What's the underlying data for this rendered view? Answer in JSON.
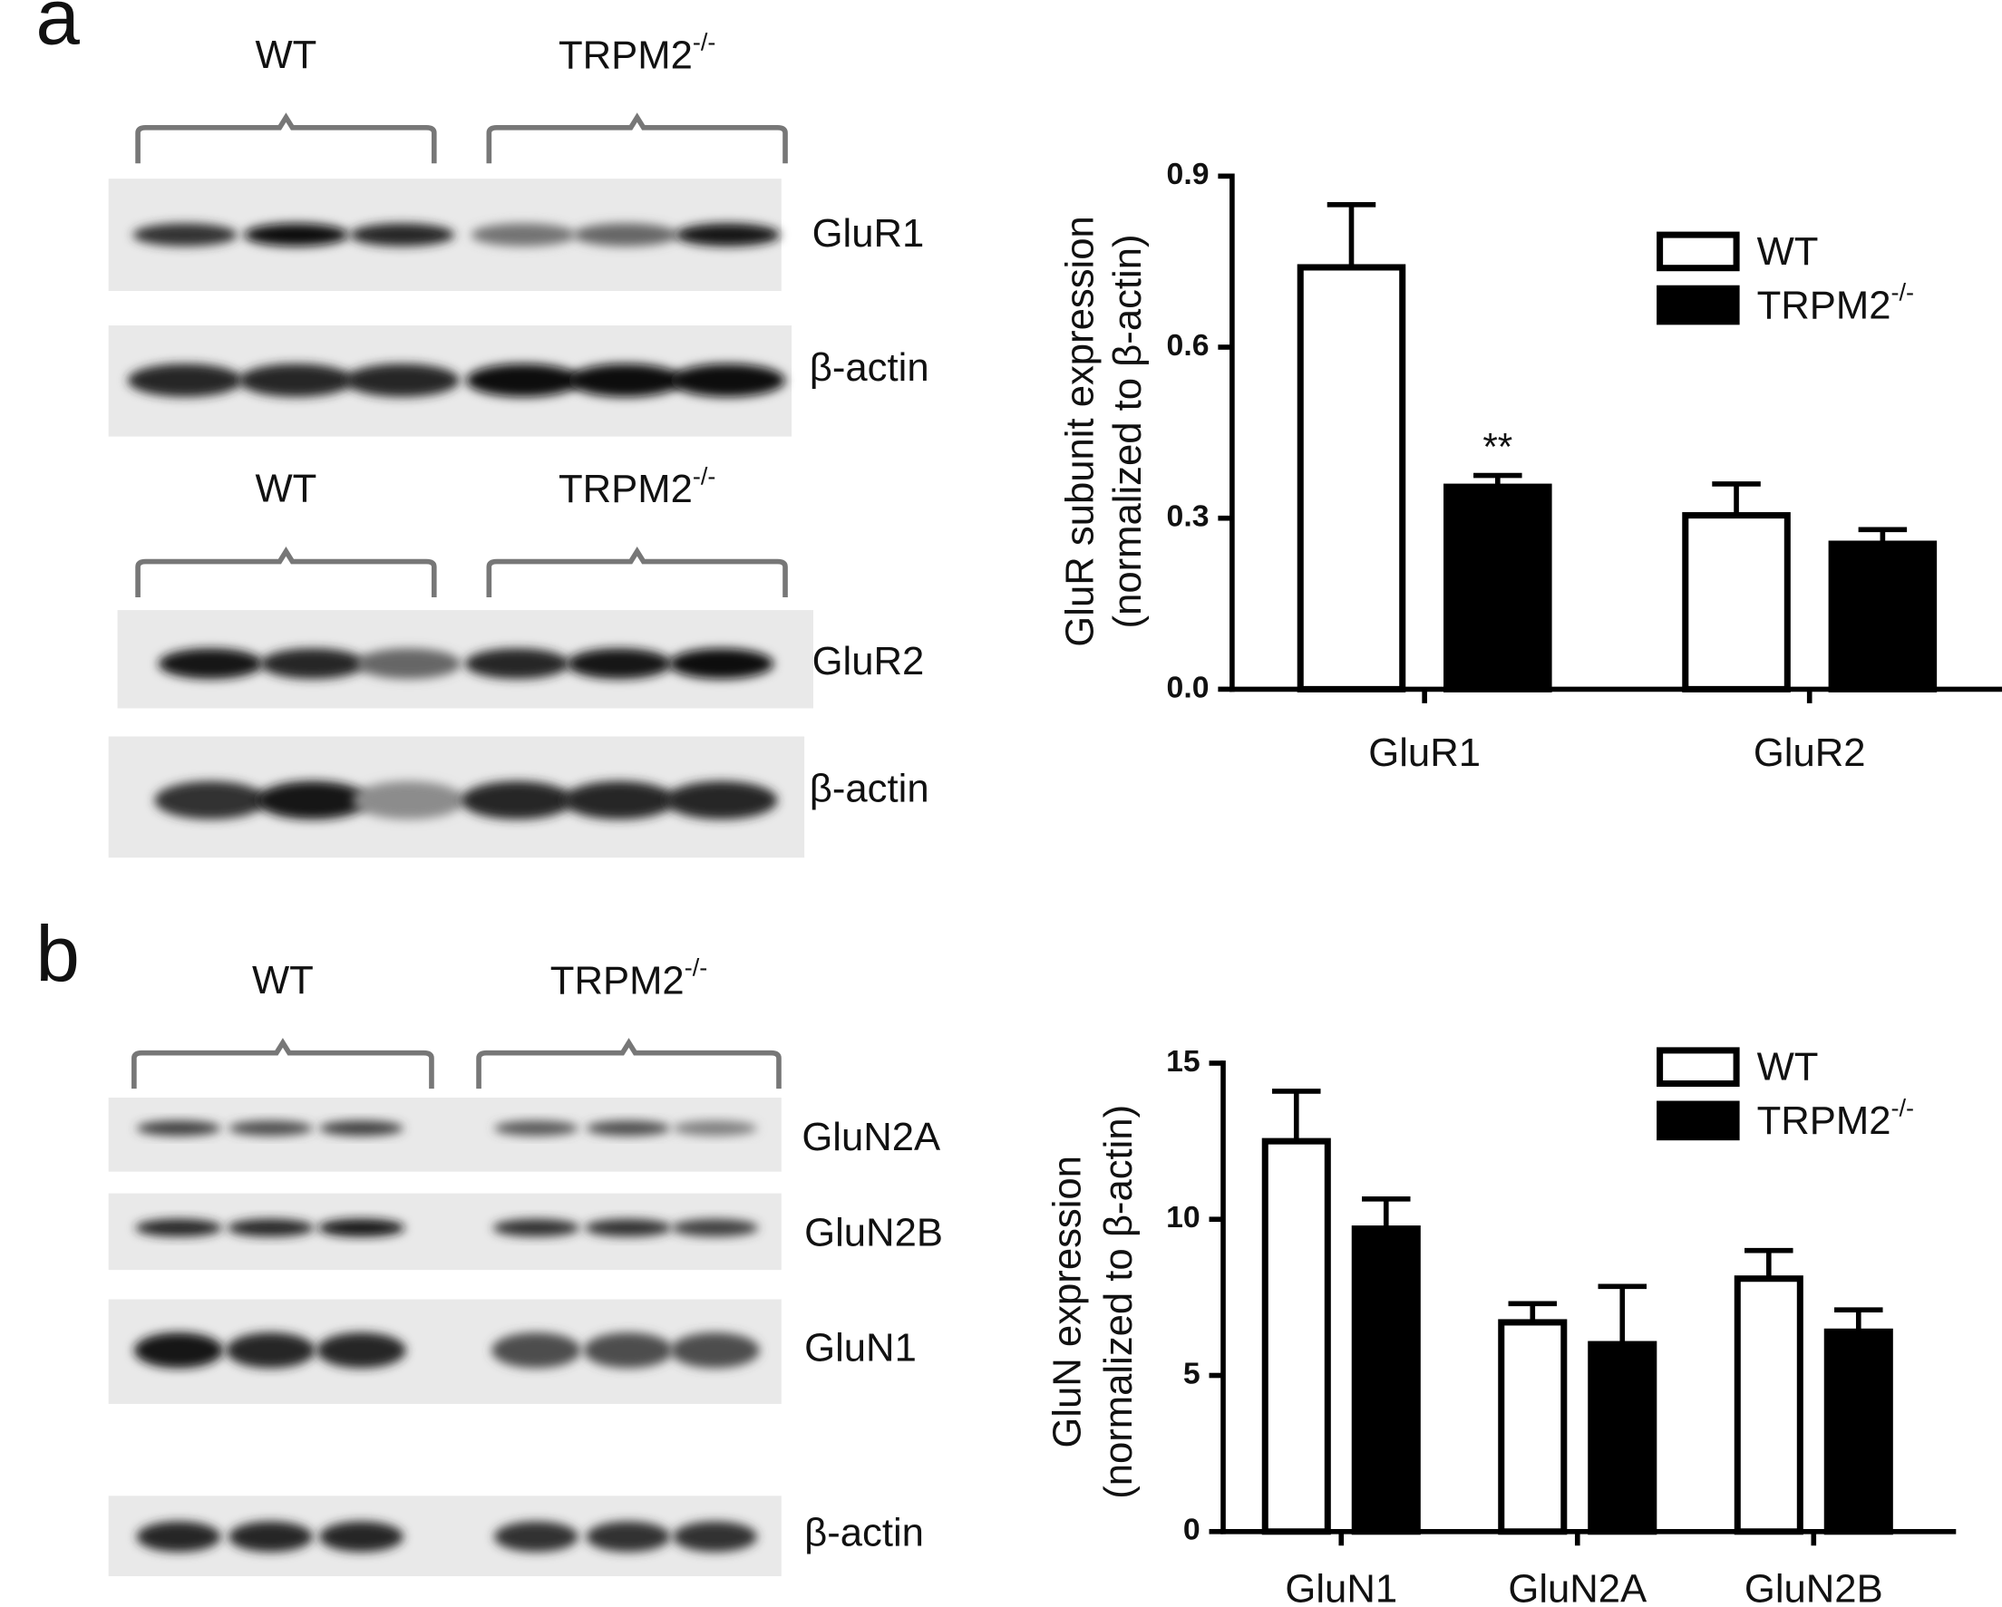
{
  "panel_labels": [
    "a",
    "b"
  ],
  "blots": [
    {
      "groups": [
        "WT",
        "TRPM2-/-"
      ],
      "rows": [
        "GluR1",
        "β-actin"
      ]
    },
    {
      "groups": [
        "WT",
        "TRPM2-/-"
      ],
      "rows": [
        "GluR2",
        "β-actin"
      ]
    },
    {
      "groups": [
        "WT",
        "TRPM2-/-"
      ],
      "rows": [
        "GluN2A",
        "GluN2B",
        "GluN1",
        "β-actin"
      ]
    }
  ],
  "chart_data": [
    {
      "type": "bar",
      "ylabel": [
        "GluR subunit expression",
        "(normalized to β-actin)"
      ],
      "categories": [
        "GluR1",
        "GluR2"
      ],
      "series": [
        {
          "name": "WT",
          "color": "#ffffff",
          "values": [
            0.74,
            0.305
          ],
          "errors": [
            0.11,
            0.055
          ]
        },
        {
          "name": "TRPM2-/-",
          "color": "#000000",
          "values": [
            0.355,
            0.255
          ],
          "errors": [
            0.02,
            0.025
          ]
        }
      ],
      "annotations": [
        {
          "text": "**",
          "category": "GluR1",
          "series": "TRPM2-/-"
        }
      ],
      "ylim": [
        0,
        0.9
      ],
      "yticks": [
        {
          "value": 0,
          "label": "0.0"
        },
        0.3,
        0.6,
        0.9
      ],
      "legend": "upper right"
    },
    {
      "type": "bar",
      "ylabel": [
        "GluN expression",
        "(normalized to β-actin)"
      ],
      "categories": [
        "GluN1",
        "GluN2A",
        "GluN2B"
      ],
      "series": [
        {
          "name": "WT",
          "color": "#ffffff",
          "values": [
            12.5,
            6.7,
            8.1
          ],
          "errors": [
            1.6,
            0.6,
            0.9
          ]
        },
        {
          "name": "TRPM2-/-",
          "color": "#000000",
          "values": [
            9.7,
            6.0,
            6.4
          ],
          "errors": [
            0.95,
            1.85,
            0.7
          ]
        }
      ],
      "ylim": [
        0,
        15
      ],
      "yticks": [
        0,
        5,
        10,
        15
      ],
      "legend": "upper right"
    }
  ]
}
